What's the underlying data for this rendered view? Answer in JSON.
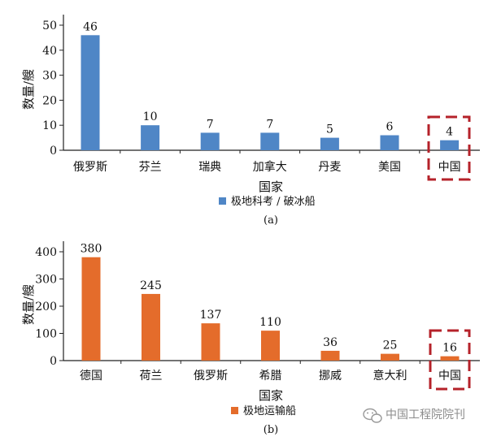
{
  "chart_data": [
    {
      "type": "bar",
      "ylabel": "数量/艘",
      "xlabel": "国家",
      "categories": [
        "俄罗斯",
        "芬兰",
        "瑞典",
        "加拿大",
        "丹麦",
        "美国",
        "中国"
      ],
      "series": [
        {
          "name": "极地科考 / 破冰船",
          "values": [
            46,
            10,
            7,
            7,
            5,
            6,
            4
          ]
        }
      ],
      "ylim": [
        0,
        50
      ],
      "yticks": [
        "0",
        "10",
        "20",
        "30",
        "40",
        "50"
      ],
      "color": "#4f86c6",
      "highlight_category": "中国",
      "highlight_color": "#b5222a",
      "caption": "(a)",
      "legend_position": "bottom-center",
      "grid": false
    },
    {
      "type": "bar",
      "ylabel": "数量/艘",
      "xlabel": "国家",
      "categories": [
        "德国",
        "荷兰",
        "俄罗斯",
        "希腊",
        "挪威",
        "意大利",
        "中国"
      ],
      "series": [
        {
          "name": "极地运输船",
          "values": [
            380,
            245,
            137,
            110,
            36,
            25,
            16
          ]
        }
      ],
      "ylim": [
        0,
        400
      ],
      "yticks": [
        "0",
        "100",
        "200",
        "300",
        "400"
      ],
      "color": "#e46c2b",
      "highlight_category": "中国",
      "highlight_color": "#b5222a",
      "caption": "(b)",
      "legend_position": "bottom-center",
      "grid": false
    }
  ],
  "watermark": {
    "text": "中国工程院院刊",
    "icon": "wechat-icon"
  }
}
